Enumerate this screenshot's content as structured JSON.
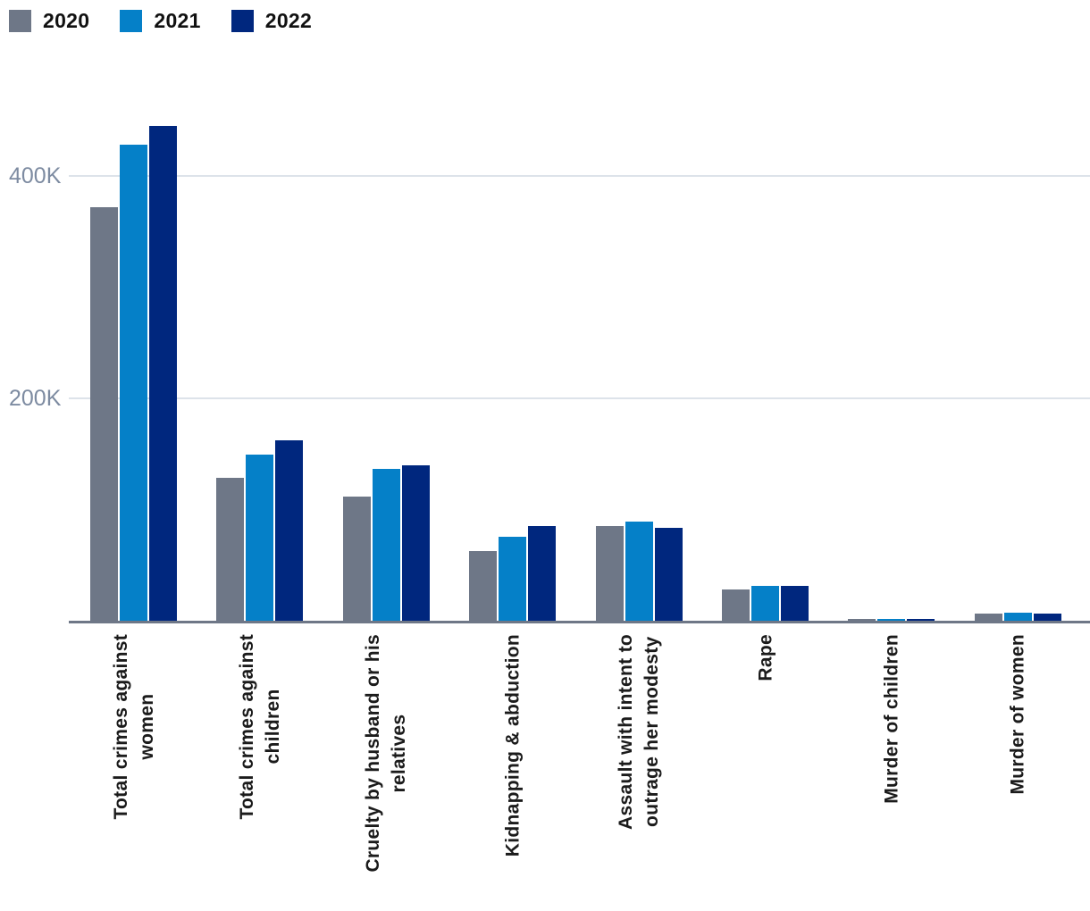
{
  "chart_data": {
    "type": "bar",
    "title": "",
    "xlabel": "",
    "ylabel": "",
    "grid": true,
    "legend_position": "top-left",
    "categories": [
      "Total crimes against\nwomen",
      "Total crimes against\nchildren",
      "Cruelty by husband or his\nrelatives",
      "Kidnapping & abduction",
      "Assault with intent to\noutrage her modesty",
      "Rape",
      "Murder of children",
      "Murder of women"
    ],
    "series": [
      {
        "name": "2020",
        "color": "#6e7787",
        "values": [
          371503,
          128531,
          111549,
          62300,
          85392,
          28046,
          1600,
          6500
        ]
      },
      {
        "name": "2021",
        "color": "#0580c8",
        "values": [
          428278,
          149404,
          136234,
          75369,
          89200,
          31677,
          1900,
          7200
        ]
      },
      {
        "name": "2022",
        "color": "#00277e",
        "values": [
          445256,
          162449,
          140019,
          85310,
          83344,
          31516,
          1900,
          6500
        ]
      }
    ],
    "yticks": [
      {
        "label": "400K",
        "value": 400000
      },
      {
        "label": "200K",
        "value": 200000
      }
    ],
    "ylim": [
      0,
      460000
    ],
    "colors": {
      "grid": "#dde3ea",
      "axis": "#6e7787",
      "ytick_label": "#7d8ba1",
      "category_label": "#1b1b1b"
    }
  }
}
